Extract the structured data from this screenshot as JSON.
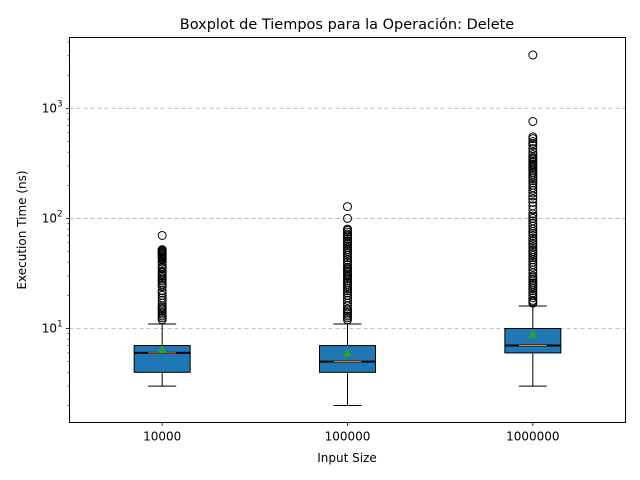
{
  "chart_data": {
    "type": "boxplot",
    "title": "Boxplot de Tiempos para la Operación: Delete",
    "xlabel": "Input Size",
    "ylabel": "Execution Time (ns)",
    "yscale": "log",
    "ylim": [
      1.4,
      4400
    ],
    "y_major_ticks": [
      10,
      100,
      1000
    ],
    "y_tick_labels": [
      {
        "base": "10",
        "exp": "1"
      },
      {
        "base": "10",
        "exp": "2"
      },
      {
        "base": "10",
        "exp": "3"
      }
    ],
    "grid": "y-dashed",
    "categories": [
      "10000",
      "100000",
      "1000000"
    ],
    "boxes": [
      {
        "category": "10000",
        "whisker_low": 3,
        "q1": 4,
        "median": 6,
        "q3": 7,
        "whisker_high": 11,
        "mean": 6.4,
        "inner_line": 6,
        "outliers": [
          12,
          12.5,
          13,
          13.5,
          14,
          14.5,
          15,
          15.5,
          16,
          17,
          18,
          19,
          20,
          21,
          22,
          24,
          25,
          26,
          27,
          28,
          29,
          30,
          31,
          32,
          33,
          35,
          36,
          38,
          40,
          42,
          43,
          44,
          45,
          46,
          47,
          48,
          49,
          50,
          51,
          52,
          70
        ]
      },
      {
        "category": "100000",
        "whisker_low": 2,
        "q1": 4,
        "median": 5,
        "q3": 7,
        "whisker_high": 11,
        "mean": 6,
        "inner_line": 5,
        "outliers": [
          12,
          12.5,
          13,
          13.5,
          14,
          14.5,
          15,
          16,
          17,
          18,
          19,
          20,
          21,
          22,
          23,
          24,
          25,
          26,
          27,
          28,
          29,
          30,
          31,
          32,
          33,
          34,
          35,
          36,
          38,
          40,
          42,
          44,
          46,
          48,
          50,
          52,
          54,
          56,
          58,
          60,
          62,
          65,
          68,
          70,
          72,
          75,
          78,
          80,
          100,
          128
        ]
      },
      {
        "category": "1000000",
        "whisker_low": 3,
        "q1": 6,
        "median": 7,
        "q3": 10,
        "whisker_high": 16,
        "mean": 8.8,
        "inner_line": 7,
        "outliers": [
          17,
          17.5,
          18,
          19,
          20,
          21,
          22,
          23,
          24,
          25,
          26,
          27,
          28,
          29,
          30,
          32,
          34,
          36,
          38,
          40,
          42,
          44,
          46,
          48,
          50,
          52,
          55,
          58,
          60,
          63,
          66,
          70,
          73,
          76,
          80,
          85,
          90,
          95,
          100,
          105,
          110,
          120,
          130,
          140,
          150,
          160,
          170,
          180,
          190,
          200,
          210,
          220,
          230,
          240,
          250,
          260,
          270,
          280,
          290,
          300,
          310,
          320,
          330,
          340,
          350,
          360,
          380,
          400,
          430,
          460,
          480,
          500,
          530,
          550,
          760,
          3050
        ]
      }
    ],
    "colors": {
      "box_fill": "#1f77b4",
      "median_line": "#000000",
      "inner_line": "#ff7f0e",
      "mean_marker": "#2ca02c",
      "grid": "#b0b0b0"
    }
  }
}
